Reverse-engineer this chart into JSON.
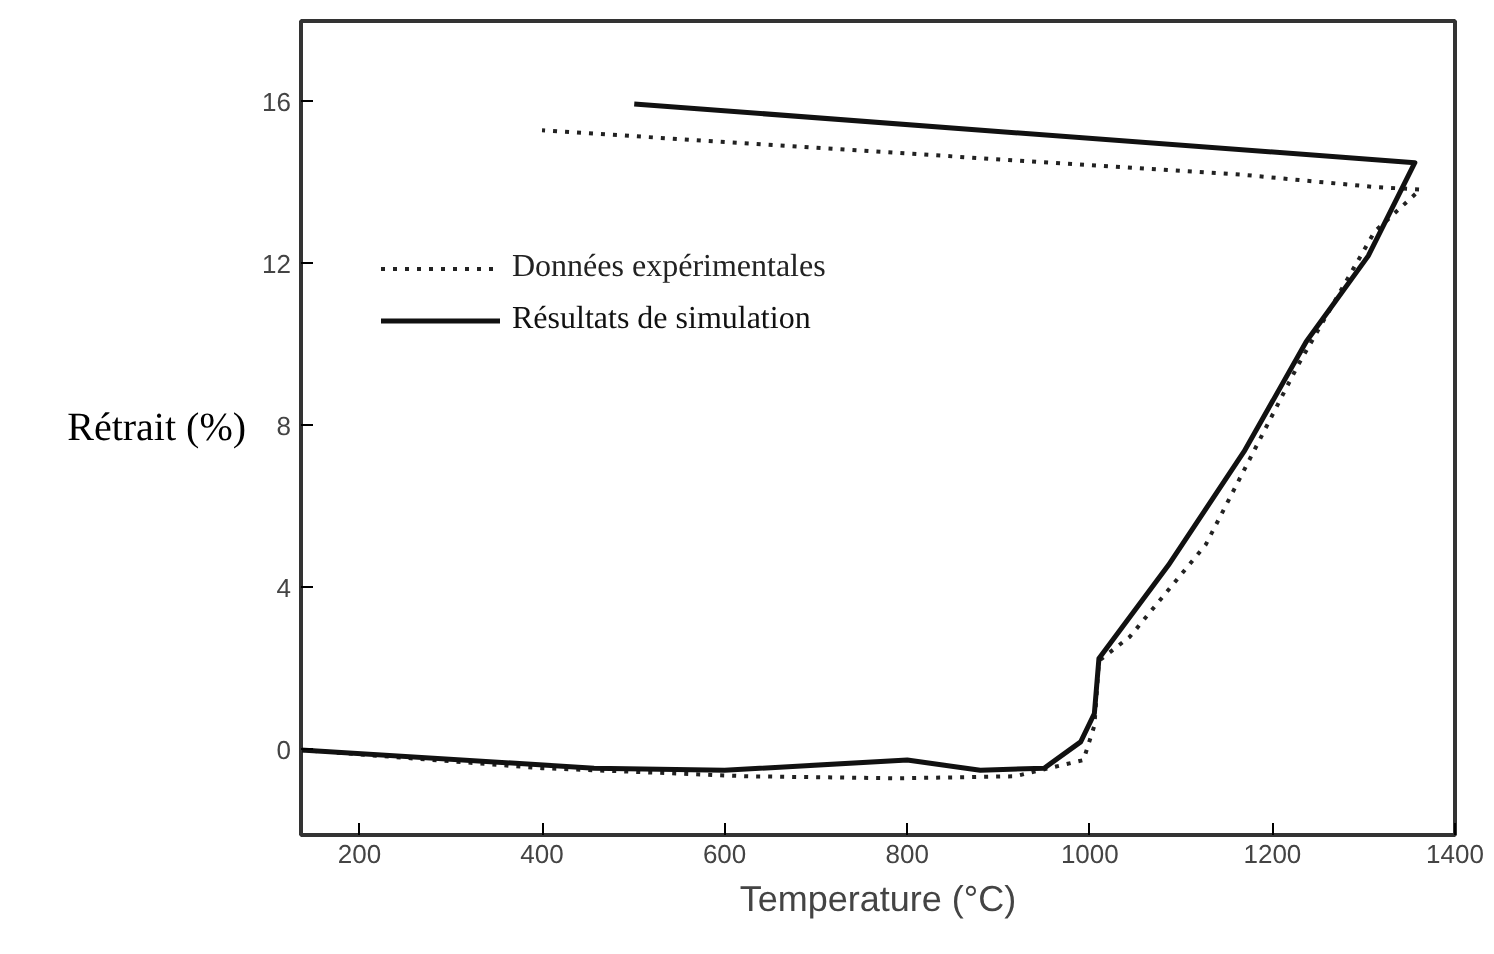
{
  "chart_data": {
    "type": "line",
    "xlabel": "Temperature (°C)",
    "ylabel": "Rétrait (%)",
    "xlim": [
      136,
      1400
    ],
    "ylim": [
      -2.1,
      18
    ],
    "xticks": [
      200,
      400,
      600,
      800,
      1000,
      1200,
      1400
    ],
    "yticks": [
      0,
      4,
      8,
      12,
      16
    ],
    "grid": false,
    "legend": "top left",
    "marker": "none",
    "series": [
      {
        "name": "Données expérimentales",
        "color": "#222222",
        "line_style": "dotted",
        "x": [
          136,
          400,
          624,
          791,
          918,
          993,
          1005,
          1010,
          1044,
          1127,
          1228,
          1312,
          1362,
          1312,
          1169,
          400
        ],
        "values": [
          0,
          -0.45,
          -0.65,
          -0.7,
          -0.65,
          -0.25,
          0.6,
          2.2,
          2.8,
          5.07,
          9.5,
          12.8,
          13.84,
          13.9,
          14.2,
          15.3
        ]
      },
      {
        "name": "Résultats de simulation",
        "color": "#111111",
        "line_style": "solid",
        "x": [
          136,
          457,
          600,
          800,
          880,
          950,
          990,
          1005,
          1010,
          1086,
          1169,
          1237,
          1305,
          1356,
          501
        ],
        "values": [
          0,
          -0.45,
          -0.5,
          -0.25,
          -0.5,
          -0.45,
          0.2,
          0.9,
          2.26,
          4.56,
          7.37,
          10.08,
          12.2,
          14.5,
          15.95
        ]
      }
    ]
  }
}
